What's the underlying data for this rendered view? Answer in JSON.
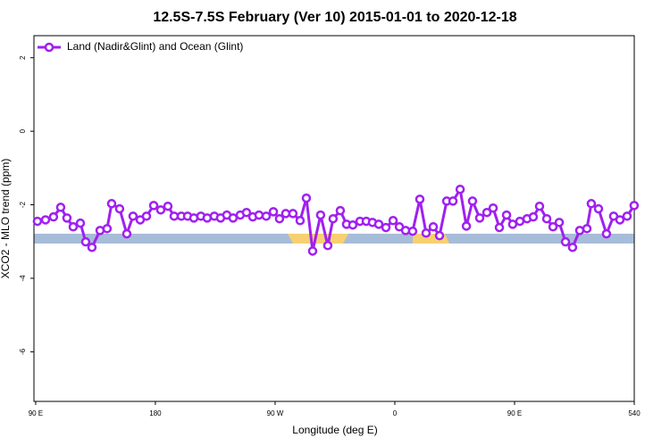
{
  "chart_data": {
    "type": "line",
    "title": "12.5S-7.5S February (Ver 10)   2015-01-01 to 2020-12-18",
    "x_label": "Longitude (deg E)",
    "y_label": "XCO2 - MLO trend (ppm)",
    "xlim": [
      88.7,
      540
    ],
    "ylim": [
      -7.35,
      2.6
    ],
    "xticks": [
      {
        "value": 90,
        "label": "90 E"
      },
      180,
      {
        "value": 270,
        "label": "90 W"
      },
      {
        "value": 360,
        "label": "0"
      },
      {
        "value": 450,
        "label": "90 E"
      },
      540
    ],
    "yticks": [
      2,
      0,
      -2,
      -4,
      -6
    ],
    "legend": "top-left",
    "series": [
      {
        "name": "Land (Nadir&Glint) and Ocean (Glint)",
        "color": "#a020f0",
        "x": [
          91.3,
          97.4,
          103.4,
          108.8,
          113.5,
          118.2,
          123.6,
          127.6,
          132.3,
          138.4,
          143.7,
          147.1,
          153.1,
          158.5,
          163.2,
          168.6,
          173.3,
          178.7,
          184.0,
          189.4,
          194.1,
          199.5,
          204.2,
          208.9,
          214.2,
          218.9,
          224.3,
          229.0,
          233.7,
          238.4,
          243.8,
          248.5,
          253.2,
          257.9,
          263.3,
          268.7,
          273.3,
          278.0,
          283.4,
          288.8,
          293.5,
          298.2,
          304.2,
          309.6,
          313.6,
          319.0,
          323.7,
          328.4,
          333.8,
          338.5,
          343.2,
          347.9,
          353.3,
          358.7,
          363.4,
          368.1,
          373.4,
          378.8,
          383.5,
          388.9,
          393.6,
          399.0,
          403.7,
          409.1,
          413.8,
          418.4,
          423.8,
          429.2,
          433.9,
          438.6,
          444.0,
          448.6,
          454.0,
          459.4,
          464.1,
          468.8,
          474.2,
          478.9,
          483.6,
          488.3,
          493.6,
          499.0,
          504.4,
          507.7,
          513.1,
          519.1,
          524.5,
          529.2,
          534.6,
          539.9
        ],
        "values": [
          -2.45,
          -2.41,
          -2.33,
          -2.07,
          -2.36,
          -2.6,
          -2.5,
          -3.01,
          -3.16,
          -2.7,
          -2.65,
          -1.97,
          -2.11,
          -2.79,
          -2.31,
          -2.41,
          -2.31,
          -2.02,
          -2.14,
          -2.04,
          -2.31,
          -2.31,
          -2.31,
          -2.36,
          -2.31,
          -2.36,
          -2.31,
          -2.36,
          -2.28,
          -2.36,
          -2.28,
          -2.21,
          -2.33,
          -2.28,
          -2.31,
          -2.19,
          -2.38,
          -2.24,
          -2.24,
          -2.43,
          -1.82,
          -3.26,
          -2.28,
          -3.11,
          -2.38,
          -2.16,
          -2.53,
          -2.55,
          -2.45,
          -2.45,
          -2.48,
          -2.53,
          -2.62,
          -2.43,
          -2.6,
          -2.7,
          -2.72,
          -1.85,
          -2.77,
          -2.6,
          -2.84,
          -1.9,
          -1.9,
          -1.58,
          -2.58,
          -1.9,
          -2.36,
          -2.21,
          -2.09,
          -2.62,
          -2.28,
          -2.53,
          -2.45,
          -2.38,
          -2.33,
          -2.04,
          -2.38,
          -2.6,
          -2.48,
          -3.01,
          -3.16,
          -2.7,
          -2.65,
          -1.97,
          -2.11,
          -2.79,
          -2.31,
          -2.41,
          -2.31,
          -2.02
        ]
      }
    ]
  }
}
